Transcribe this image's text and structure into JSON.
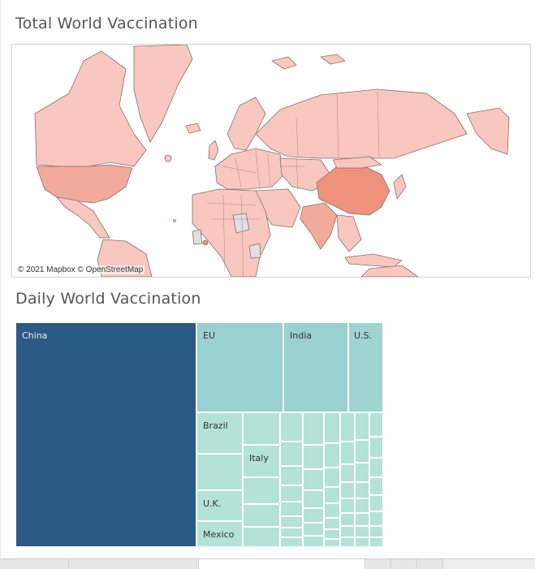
{
  "sections": {
    "total_title": "Total World Vaccination",
    "daily_title": "Daily World Vaccination"
  },
  "map": {
    "attribution": "© 2021 Mapbox © OpenStreetMap",
    "colors": {
      "low": "#f8c7bf",
      "medium": "#f2aa9b",
      "high": "#ee927c",
      "no_data": "#e0e0e0",
      "border": "#8a6f6b"
    },
    "highlighted_regions": [
      {
        "name": "China",
        "level": "high"
      },
      {
        "name": "U.S.",
        "level": "medium"
      },
      {
        "name": "India",
        "level": "medium"
      }
    ]
  },
  "chart_data": {
    "type": "treemap",
    "title": "Daily World Vaccination",
    "colors": {
      "max": "#2c5a86",
      "mid": "#99d1d0",
      "low": "#b4e2d9"
    },
    "items": [
      {
        "label": "China",
        "level": "max"
      },
      {
        "label": "EU",
        "level": "mid"
      },
      {
        "label": "India",
        "level": "mid"
      },
      {
        "label": "U.S.",
        "level": "mid"
      },
      {
        "label": "Brazil",
        "level": "low"
      },
      {
        "label": "Italy",
        "level": "low"
      },
      {
        "label": "U.K.",
        "level": "low"
      },
      {
        "label": "Mexico",
        "level": "low"
      }
    ]
  }
}
